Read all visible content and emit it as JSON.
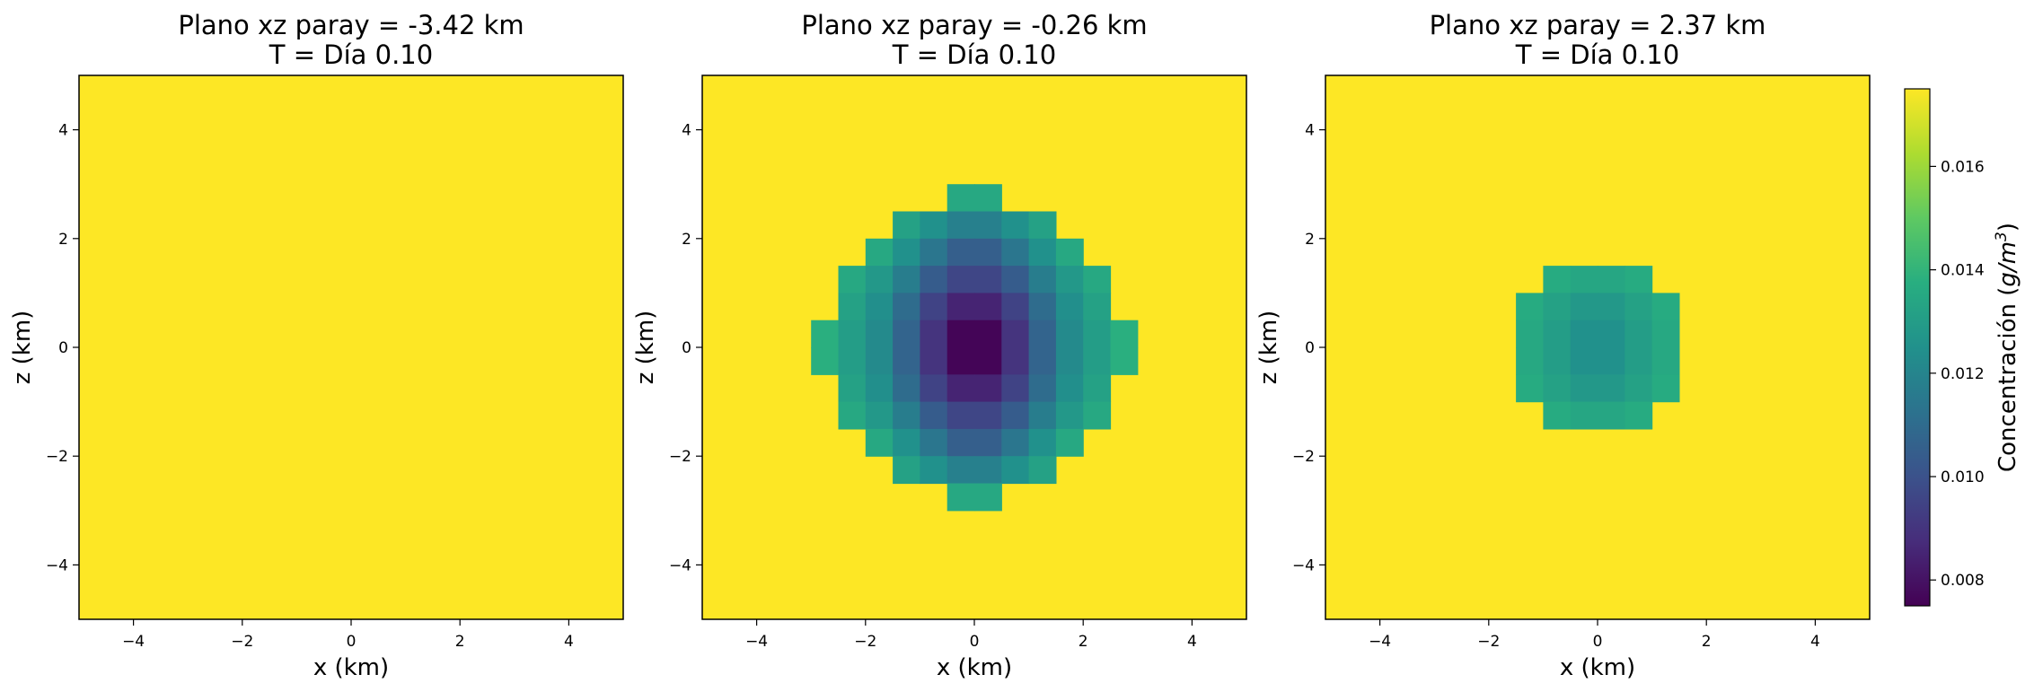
{
  "chart_data": [
    {
      "type": "heatmap",
      "title": "Plano xz paray = -3.42 km",
      "subtitle": "T = Día 0.10",
      "xlabel": "x (km)",
      "ylabel": "z (km)",
      "xlim": [
        -5,
        5
      ],
      "ylim": [
        -5,
        5
      ],
      "xticks": [
        "−4",
        "−2",
        "0",
        "2",
        "4"
      ],
      "yticks": [
        "−4",
        "−2",
        "0",
        "2",
        "4"
      ],
      "background_value": 0.0175,
      "cell_size": 0.5,
      "cells": []
    },
    {
      "type": "heatmap",
      "title": "Plano xz paray = -0.26 km",
      "subtitle": "T = Día 0.10",
      "xlabel": "x (km)",
      "ylabel": "z (km)",
      "xlim": [
        -5,
        5
      ],
      "ylim": [
        -5,
        5
      ],
      "xticks": [
        "−4",
        "−2",
        "0",
        "2",
        "4"
      ],
      "yticks": [
        "−4",
        "−2",
        "0",
        "2",
        "4"
      ],
      "background_value": 0.0175,
      "cell_size": 0.5,
      "cells": [
        {
          "x": -0.5,
          "z": 2.5,
          "v": 0.0135
        },
        {
          "x": 0.0,
          "z": 2.5,
          "v": 0.0135
        },
        {
          "x": -1.5,
          "z": 2.0,
          "v": 0.0132
        },
        {
          "x": -1.0,
          "z": 2.0,
          "v": 0.0125
        },
        {
          "x": -0.5,
          "z": 2.0,
          "v": 0.0118
        },
        {
          "x": 0.0,
          "z": 2.0,
          "v": 0.0118
        },
        {
          "x": 0.5,
          "z": 2.0,
          "v": 0.0125
        },
        {
          "x": 1.0,
          "z": 2.0,
          "v": 0.0132
        },
        {
          "x": -2.0,
          "z": 1.5,
          "v": 0.0135
        },
        {
          "x": -1.5,
          "z": 1.5,
          "v": 0.0125
        },
        {
          "x": -1.0,
          "z": 1.5,
          "v": 0.0114
        },
        {
          "x": -0.5,
          "z": 1.5,
          "v": 0.0105
        },
        {
          "x": 0.0,
          "z": 1.5,
          "v": 0.0105
        },
        {
          "x": 0.5,
          "z": 1.5,
          "v": 0.0114
        },
        {
          "x": 1.0,
          "z": 1.5,
          "v": 0.0125
        },
        {
          "x": 1.5,
          "z": 1.5,
          "v": 0.0135
        },
        {
          "x": -2.5,
          "z": 1.0,
          "v": 0.0135
        },
        {
          "x": -2.0,
          "z": 1.0,
          "v": 0.0128
        },
        {
          "x": -1.5,
          "z": 1.0,
          "v": 0.0117
        },
        {
          "x": -1.0,
          "z": 1.0,
          "v": 0.0104
        },
        {
          "x": -0.5,
          "z": 1.0,
          "v": 0.0096
        },
        {
          "x": 0.0,
          "z": 1.0,
          "v": 0.0096
        },
        {
          "x": 0.5,
          "z": 1.0,
          "v": 0.0104
        },
        {
          "x": 1.0,
          "z": 1.0,
          "v": 0.0117
        },
        {
          "x": 1.5,
          "z": 1.0,
          "v": 0.0128
        },
        {
          "x": 2.0,
          "z": 1.0,
          "v": 0.0135
        },
        {
          "x": -2.5,
          "z": 0.5,
          "v": 0.0132
        },
        {
          "x": -2.0,
          "z": 0.5,
          "v": 0.0124
        },
        {
          "x": -1.5,
          "z": 0.5,
          "v": 0.011
        },
        {
          "x": -1.0,
          "z": 0.5,
          "v": 0.0095
        },
        {
          "x": -0.5,
          "z": 0.5,
          "v": 0.0085
        },
        {
          "x": 0.0,
          "z": 0.5,
          "v": 0.0085
        },
        {
          "x": 0.5,
          "z": 0.5,
          "v": 0.0095
        },
        {
          "x": 1.0,
          "z": 0.5,
          "v": 0.011
        },
        {
          "x": 1.5,
          "z": 0.5,
          "v": 0.0124
        },
        {
          "x": 2.0,
          "z": 0.5,
          "v": 0.0132
        },
        {
          "x": -3.0,
          "z": 0.0,
          "v": 0.0138
        },
        {
          "x": -2.5,
          "z": 0.0,
          "v": 0.013
        },
        {
          "x": -2.0,
          "z": 0.0,
          "v": 0.0122
        },
        {
          "x": -1.5,
          "z": 0.0,
          "v": 0.0107
        },
        {
          "x": -1.0,
          "z": 0.0,
          "v": 0.009
        },
        {
          "x": -0.5,
          "z": 0.0,
          "v": 0.0076
        },
        {
          "x": 0.0,
          "z": 0.0,
          "v": 0.0076
        },
        {
          "x": 0.5,
          "z": 0.0,
          "v": 0.009
        },
        {
          "x": 1.0,
          "z": 0.0,
          "v": 0.0107
        },
        {
          "x": 1.5,
          "z": 0.0,
          "v": 0.0122
        },
        {
          "x": 2.0,
          "z": 0.0,
          "v": 0.013
        },
        {
          "x": 2.5,
          "z": 0.0,
          "v": 0.0138
        },
        {
          "x": -3.0,
          "z": -0.5,
          "v": 0.0138
        },
        {
          "x": -2.5,
          "z": -0.5,
          "v": 0.013
        },
        {
          "x": -2.0,
          "z": -0.5,
          "v": 0.0122
        },
        {
          "x": -1.5,
          "z": -0.5,
          "v": 0.0107
        },
        {
          "x": -1.0,
          "z": -0.5,
          "v": 0.009
        },
        {
          "x": -0.5,
          "z": -0.5,
          "v": 0.0076
        },
        {
          "x": 0.0,
          "z": -0.5,
          "v": 0.0076
        },
        {
          "x": 0.5,
          "z": -0.5,
          "v": 0.009
        },
        {
          "x": 1.0,
          "z": -0.5,
          "v": 0.0107
        },
        {
          "x": 1.5,
          "z": -0.5,
          "v": 0.0122
        },
        {
          "x": 2.0,
          "z": -0.5,
          "v": 0.013
        },
        {
          "x": 2.5,
          "z": -0.5,
          "v": 0.0138
        },
        {
          "x": -2.5,
          "z": -1.0,
          "v": 0.0132
        },
        {
          "x": -2.0,
          "z": -1.0,
          "v": 0.0124
        },
        {
          "x": -1.5,
          "z": -1.0,
          "v": 0.011
        },
        {
          "x": -1.0,
          "z": -1.0,
          "v": 0.0095
        },
        {
          "x": -0.5,
          "z": -1.0,
          "v": 0.0085
        },
        {
          "x": 0.0,
          "z": -1.0,
          "v": 0.0085
        },
        {
          "x": 0.5,
          "z": -1.0,
          "v": 0.0095
        },
        {
          "x": 1.0,
          "z": -1.0,
          "v": 0.011
        },
        {
          "x": 1.5,
          "z": -1.0,
          "v": 0.0124
        },
        {
          "x": 2.0,
          "z": -1.0,
          "v": 0.0132
        },
        {
          "x": -2.5,
          "z": -1.5,
          "v": 0.0135
        },
        {
          "x": -2.0,
          "z": -1.5,
          "v": 0.0128
        },
        {
          "x": -1.5,
          "z": -1.5,
          "v": 0.0117
        },
        {
          "x": -1.0,
          "z": -1.5,
          "v": 0.0104
        },
        {
          "x": -0.5,
          "z": -1.5,
          "v": 0.0096
        },
        {
          "x": 0.0,
          "z": -1.5,
          "v": 0.0096
        },
        {
          "x": 0.5,
          "z": -1.5,
          "v": 0.0104
        },
        {
          "x": 1.0,
          "z": -1.5,
          "v": 0.0117
        },
        {
          "x": 1.5,
          "z": -1.5,
          "v": 0.0128
        },
        {
          "x": 2.0,
          "z": -1.5,
          "v": 0.0135
        },
        {
          "x": -2.0,
          "z": -2.0,
          "v": 0.0135
        },
        {
          "x": -1.5,
          "z": -2.0,
          "v": 0.0125
        },
        {
          "x": -1.0,
          "z": -2.0,
          "v": 0.0114
        },
        {
          "x": -0.5,
          "z": -2.0,
          "v": 0.0105
        },
        {
          "x": 0.0,
          "z": -2.0,
          "v": 0.0105
        },
        {
          "x": 0.5,
          "z": -2.0,
          "v": 0.0114
        },
        {
          "x": 1.0,
          "z": -2.0,
          "v": 0.0125
        },
        {
          "x": 1.5,
          "z": -2.0,
          "v": 0.0135
        },
        {
          "x": -1.5,
          "z": -2.5,
          "v": 0.0132
        },
        {
          "x": -1.0,
          "z": -2.5,
          "v": 0.0125
        },
        {
          "x": -0.5,
          "z": -2.5,
          "v": 0.0118
        },
        {
          "x": 0.0,
          "z": -2.5,
          "v": 0.0118
        },
        {
          "x": 0.5,
          "z": -2.5,
          "v": 0.0125
        },
        {
          "x": 1.0,
          "z": -2.5,
          "v": 0.0132
        },
        {
          "x": -0.5,
          "z": -3.0,
          "v": 0.0135
        },
        {
          "x": 0.0,
          "z": -3.0,
          "v": 0.0135
        }
      ]
    },
    {
      "type": "heatmap",
      "title": "Plano xz paray = 2.37 km",
      "subtitle": "T = Día 0.10",
      "xlabel": "x (km)",
      "ylabel": "z (km)",
      "xlim": [
        -5,
        5
      ],
      "ylim": [
        -5,
        5
      ],
      "xticks": [
        "−4",
        "−2",
        "0",
        "2",
        "4"
      ],
      "yticks": [
        "−4",
        "−2",
        "0",
        "2",
        "4"
      ],
      "background_value": 0.0175,
      "cell_size": 0.5,
      "cells": [
        {
          "x": -1.0,
          "z": 1.0,
          "v": 0.0136
        },
        {
          "x": -0.5,
          "z": 1.0,
          "v": 0.0134
        },
        {
          "x": 0.0,
          "z": 1.0,
          "v": 0.0134
        },
        {
          "x": 0.5,
          "z": 1.0,
          "v": 0.0136
        },
        {
          "x": -1.5,
          "z": 0.5,
          "v": 0.0136
        },
        {
          "x": -1.0,
          "z": 0.5,
          "v": 0.0132
        },
        {
          "x": -0.5,
          "z": 0.5,
          "v": 0.0128
        },
        {
          "x": 0.0,
          "z": 0.5,
          "v": 0.0128
        },
        {
          "x": 0.5,
          "z": 0.5,
          "v": 0.0132
        },
        {
          "x": 1.0,
          "z": 0.5,
          "v": 0.0136
        },
        {
          "x": -1.5,
          "z": 0.0,
          "v": 0.0135
        },
        {
          "x": -1.0,
          "z": 0.0,
          "v": 0.013
        },
        {
          "x": -0.5,
          "z": 0.0,
          "v": 0.0125
        },
        {
          "x": 0.0,
          "z": 0.0,
          "v": 0.0125
        },
        {
          "x": 0.5,
          "z": 0.0,
          "v": 0.013
        },
        {
          "x": 1.0,
          "z": 0.0,
          "v": 0.0135
        },
        {
          "x": -1.5,
          "z": -0.5,
          "v": 0.0135
        },
        {
          "x": -1.0,
          "z": -0.5,
          "v": 0.013
        },
        {
          "x": -0.5,
          "z": -0.5,
          "v": 0.0125
        },
        {
          "x": 0.0,
          "z": -0.5,
          "v": 0.0125
        },
        {
          "x": 0.5,
          "z": -0.5,
          "v": 0.013
        },
        {
          "x": 1.0,
          "z": -0.5,
          "v": 0.0135
        },
        {
          "x": -1.5,
          "z": -1.0,
          "v": 0.0136
        },
        {
          "x": -1.0,
          "z": -1.0,
          "v": 0.0132
        },
        {
          "x": -0.5,
          "z": -1.0,
          "v": 0.0128
        },
        {
          "x": 0.0,
          "z": -1.0,
          "v": 0.0128
        },
        {
          "x": 0.5,
          "z": -1.0,
          "v": 0.0132
        },
        {
          "x": 1.0,
          "z": -1.0,
          "v": 0.0136
        },
        {
          "x": -1.0,
          "z": -1.5,
          "v": 0.0136
        },
        {
          "x": -0.5,
          "z": -1.5,
          "v": 0.0134
        },
        {
          "x": 0.0,
          "z": -1.5,
          "v": 0.0134
        },
        {
          "x": 0.5,
          "z": -1.5,
          "v": 0.0136
        }
      ]
    }
  ],
  "colorbar": {
    "label": "Concentración (",
    "label_italic": "g/m",
    "label_sup": "3",
    "label_close": ")",
    "vmin": 0.0075,
    "vmax": 0.0175,
    "colormap": "viridis",
    "ticks": [
      0.008,
      0.01,
      0.012,
      0.014,
      0.016
    ],
    "tick_labels": [
      "0.008",
      "0.010",
      "0.012",
      "0.014",
      "0.016"
    ]
  }
}
